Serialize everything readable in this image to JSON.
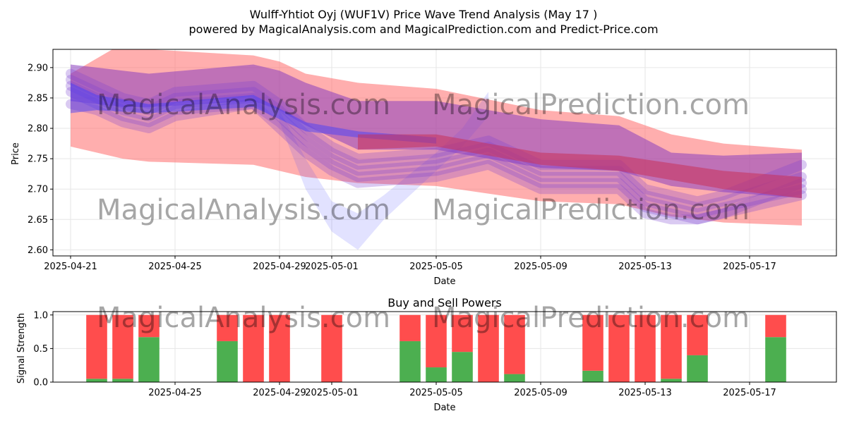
{
  "figure": {
    "title_line1": "Wulff-Yhtiot Oyj (WUF1V) Price Wave Trend Analysis (May 17 )",
    "title_line2": "powered by MagicalAnalysis.com and MagicalPrediction.com and Predict-Price.com",
    "watermarks": [
      "MagicalAnalysis.com",
      "MagicalPrediction.com",
      "MagicalAnalysis.com",
      "MagicalPrediction.com",
      "MagicalAnalysis.com",
      "MagicalPrediction.com"
    ]
  },
  "colors": {
    "red_band": "#ff6b6b",
    "blue_band": "#3b3bff",
    "purple_band": "#8a3fbf",
    "buy": "#4caf50",
    "sell": "#ff4d4d"
  },
  "chart_data": [
    {
      "type": "area",
      "title": "",
      "xlabel": "Date",
      "ylabel": "Price",
      "ylim": [
        2.59,
        2.93
      ],
      "xlim": [
        "2025-04-20",
        "2025-05-20"
      ],
      "x_ticks": [
        "2025-04-21",
        "2025-04-25",
        "2025-04-29",
        "2025-05-01",
        "2025-05-05",
        "2025-05-09",
        "2025-05-13",
        "2025-05-17"
      ],
      "y_ticks": [
        2.6,
        2.65,
        2.7,
        2.75,
        2.8,
        2.85,
        2.9
      ],
      "y_tick_labels": [
        "2.60",
        "2.65",
        "2.70",
        "2.75",
        "2.80",
        "2.85",
        "2.90"
      ],
      "grid": true,
      "series": [
        {
          "kind": "red_wide_band",
          "x": [
            "2025-04-21",
            "2025-04-23",
            "2025-04-24",
            "2025-04-28",
            "2025-04-29",
            "2025-04-30",
            "2025-05-02",
            "2025-05-05",
            "2025-05-09",
            "2025-05-12",
            "2025-05-14",
            "2025-05-16",
            "2025-05-19"
          ],
          "upper": [
            2.89,
            2.94,
            2.93,
            2.92,
            2.91,
            2.89,
            2.875,
            2.865,
            2.83,
            2.82,
            2.79,
            2.775,
            2.765
          ],
          "lower": [
            2.77,
            2.75,
            2.745,
            2.74,
            2.73,
            2.72,
            2.71,
            2.705,
            2.68,
            2.675,
            2.655,
            2.645,
            2.64
          ]
        },
        {
          "kind": "purple_band",
          "x": [
            "2025-04-21",
            "2025-04-23",
            "2025-04-24",
            "2025-04-28",
            "2025-04-29",
            "2025-04-30",
            "2025-05-02",
            "2025-05-05",
            "2025-05-09",
            "2025-05-12",
            "2025-05-14",
            "2025-05-16",
            "2025-05-19"
          ],
          "upper": [
            2.905,
            2.895,
            2.89,
            2.905,
            2.895,
            2.875,
            2.845,
            2.845,
            2.815,
            2.805,
            2.76,
            2.755,
            2.76
          ],
          "lower": [
            2.845,
            2.835,
            2.835,
            2.845,
            2.83,
            2.805,
            2.765,
            2.765,
            2.735,
            2.73,
            2.705,
            2.695,
            2.685
          ]
        },
        {
          "kind": "blue_band",
          "x": [
            "2025-04-21",
            "2025-04-22",
            "2025-04-24",
            "2025-04-28",
            "2025-04-30",
            "2025-05-02",
            "2025-05-05"
          ],
          "upper": [
            2.875,
            2.855,
            2.84,
            2.855,
            2.81,
            2.795,
            2.785
          ],
          "lower": [
            2.825,
            2.83,
            2.825,
            2.835,
            2.795,
            2.785,
            2.775
          ]
        },
        {
          "kind": "red_narrow_band",
          "x": [
            "2025-05-02",
            "2025-05-05",
            "2025-05-07",
            "2025-05-09",
            "2025-05-12",
            "2025-05-16",
            "2025-05-19"
          ],
          "upper": [
            2.79,
            2.79,
            2.775,
            2.76,
            2.755,
            2.73,
            2.72
          ],
          "lower": [
            2.765,
            2.77,
            2.755,
            2.74,
            2.73,
            2.7,
            2.685
          ]
        },
        {
          "kind": "wave_lines",
          "x": [
            "2025-04-21",
            "2025-04-22",
            "2025-04-23",
            "2025-04-24",
            "2025-04-25",
            "2025-04-28",
            "2025-04-29",
            "2025-04-30",
            "2025-05-01",
            "2025-05-02",
            "2025-05-05",
            "2025-05-06",
            "2025-05-07",
            "2025-05-08",
            "2025-05-09",
            "2025-05-12",
            "2025-05-13",
            "2025-05-14",
            "2025-05-15",
            "2025-05-16",
            "2025-05-19"
          ],
          "paths": [
            [
              2.87,
              2.85,
              2.83,
              2.82,
              2.84,
              2.85,
              2.82,
              2.78,
              2.75,
              2.73,
              2.74,
              2.75,
              2.76,
              2.74,
              2.72,
              2.72,
              2.68,
              2.67,
              2.66,
              2.67,
              2.7
            ],
            [
              2.86,
              2.84,
              2.82,
              2.81,
              2.83,
              2.84,
              2.81,
              2.77,
              2.74,
              2.72,
              2.73,
              2.74,
              2.75,
              2.73,
              2.71,
              2.71,
              2.67,
              2.66,
              2.65,
              2.66,
              2.69
            ],
            [
              2.88,
              2.86,
              2.84,
              2.83,
              2.85,
              2.86,
              2.83,
              2.79,
              2.76,
              2.74,
              2.75,
              2.76,
              2.77,
              2.75,
              2.73,
              2.73,
              2.69,
              2.68,
              2.67,
              2.68,
              2.72
            ],
            [
              2.84,
              2.83,
              2.81,
              2.8,
              2.82,
              2.84,
              2.8,
              2.76,
              2.73,
              2.71,
              2.72,
              2.73,
              2.74,
              2.72,
              2.7,
              2.7,
              2.66,
              2.65,
              2.65,
              2.66,
              2.71
            ],
            [
              2.89,
              2.87,
              2.85,
              2.84,
              2.86,
              2.87,
              2.84,
              2.8,
              2.77,
              2.75,
              2.76,
              2.77,
              2.78,
              2.76,
              2.74,
              2.74,
              2.7,
              2.69,
              2.68,
              2.69,
              2.74
            ]
          ]
        },
        {
          "kind": "blue_dip",
          "x": [
            "2025-04-29",
            "2025-04-30",
            "2025-05-01",
            "2025-05-02",
            "2025-05-03",
            "2025-05-05",
            "2025-05-06",
            "2025-05-07"
          ],
          "upper": [
            2.83,
            2.75,
            2.68,
            2.66,
            2.69,
            2.76,
            2.8,
            2.86
          ],
          "lower": [
            2.81,
            2.7,
            2.63,
            2.6,
            2.65,
            2.73,
            2.77,
            2.82
          ]
        }
      ]
    },
    {
      "type": "bar",
      "title": "Buy and Sell Powers",
      "xlabel": "Date",
      "ylabel": "Signal Strength",
      "ylim": [
        0,
        1.05
      ],
      "xlim": [
        "2025-04-20",
        "2025-05-20"
      ],
      "x_ticks": [
        "2025-04-25",
        "2025-04-29",
        "2025-05-01",
        "2025-05-05",
        "2025-05-09",
        "2025-05-13",
        "2025-05-17"
      ],
      "y_ticks": [
        0.0,
        0.5,
        1.0
      ],
      "y_tick_labels": [
        "0.0",
        "0.5",
        "1.0"
      ],
      "grid": true,
      "categories": [
        "2025-04-22",
        "2025-04-23",
        "2025-04-24",
        "2025-04-27",
        "2025-04-28",
        "2025-04-29",
        "2025-05-01",
        "2025-05-04",
        "2025-05-05",
        "2025-05-06",
        "2025-05-07",
        "2025-05-08",
        "2025-05-11",
        "2025-05-12",
        "2025-05-13",
        "2025-05-14",
        "2025-05-15",
        "2025-05-18"
      ],
      "series": [
        {
          "name": "Buy",
          "values": [
            0.05,
            0.05,
            0.67,
            0.61,
            0.0,
            0.0,
            0.0,
            0.61,
            0.22,
            0.45,
            0.0,
            0.12,
            0.17,
            0.0,
            0.0,
            0.05,
            0.4,
            0.67
          ]
        },
        {
          "name": "Sell",
          "values": [
            0.95,
            0.95,
            0.33,
            0.39,
            1.0,
            1.0,
            1.0,
            0.39,
            0.78,
            0.55,
            1.0,
            0.88,
            0.83,
            1.0,
            1.0,
            0.95,
            0.6,
            0.33
          ]
        }
      ]
    }
  ]
}
